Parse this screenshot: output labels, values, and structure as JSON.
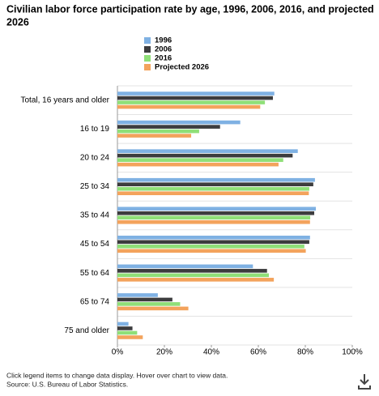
{
  "chart_data": {
    "type": "hbar",
    "title": [
      "Civilian labor force participation rate by age, 1996, 2006, 2016, and projected",
      "2026"
    ],
    "categories": [
      "Total, 16 years and older",
      "16 to 19",
      "20 to 24",
      "25 to 34",
      "35 to 44",
      "45 to 54",
      "55 to 64",
      "65 to 74",
      "75 and older"
    ],
    "series": [
      {
        "name": "1996",
        "color": "#7fb1e3",
        "values": [
          66.8,
          52.3,
          76.8,
          84.1,
          84.5,
          82.0,
          57.7,
          17.2,
          4.7
        ]
      },
      {
        "name": "2006",
        "color": "#3c3c3e",
        "values": [
          66.2,
          43.7,
          74.6,
          83.4,
          83.8,
          81.7,
          63.7,
          23.4,
          6.4
        ]
      },
      {
        "name": "2016",
        "color": "#8fdf78",
        "values": [
          62.8,
          34.8,
          70.6,
          81.7,
          82.1,
          79.6,
          64.5,
          26.7,
          8.4
        ]
      },
      {
        "name": "Projected 2026",
        "color": "#f3a35c",
        "values": [
          60.8,
          31.4,
          68.6,
          81.5,
          82.0,
          80.2,
          66.6,
          30.2,
          10.8
        ]
      }
    ],
    "xlim": [
      0,
      100
    ],
    "xticks": [
      {
        "value": 0,
        "label": "0%"
      },
      {
        "value": 20,
        "label": "20%"
      },
      {
        "value": 40,
        "label": "40%"
      },
      {
        "value": 60,
        "label": "60%"
      },
      {
        "value": 80,
        "label": "80%"
      },
      {
        "value": 100,
        "label": "100%"
      }
    ],
    "notes": [
      "Click legend items to change data display. Hover over chart to view data.",
      "Source: U.S. Bureau of Labor Statistics."
    ]
  }
}
